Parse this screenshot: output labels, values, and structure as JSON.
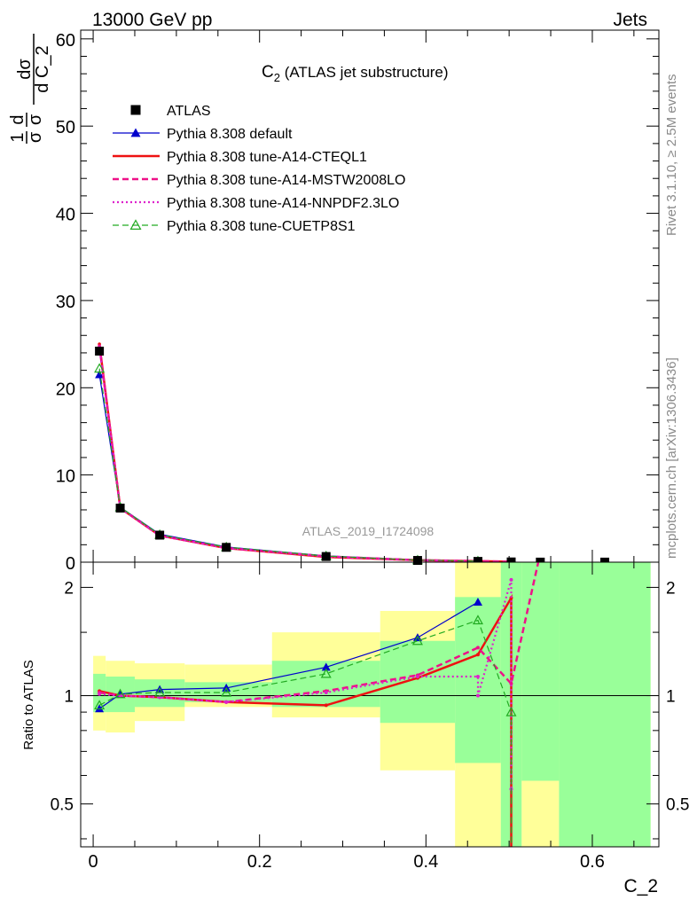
{
  "header": {
    "left": "13000 GeV pp",
    "right": "Jets"
  },
  "side_labels": {
    "rivet": "Rivet 3.1.10, ≥ 2.5M events",
    "mcplots": "mcplots.cern.ch [arXiv:1306.3436]"
  },
  "watermark": "ATLAS_2019_I1724098",
  "chart_data": [
    {
      "type": "line",
      "title": "C2 (ATLAS jet substructure)",
      "title_main": "C",
      "title_sub": "2",
      "title_rest": " (ATLAS jet substructure)",
      "ylabel": "1/σ dσ/dC_2",
      "xlabel": "C_2",
      "xlim": [
        -0.015,
        0.68
      ],
      "ylim": [
        0,
        61
      ],
      "xticks": [
        "0",
        "0.2",
        "0.4",
        "0.6"
      ],
      "yticks": [
        "0",
        "10",
        "20",
        "30",
        "40",
        "50",
        "60"
      ],
      "legend_position": "top-left",
      "data_x": [
        0.0075,
        0.0325,
        0.08,
        0.16,
        0.28,
        0.39,
        0.4625,
        0.5025,
        0.5375,
        0.615
      ],
      "data_y": [
        24.2,
        6.2,
        3.1,
        1.7,
        0.65,
        0.2,
        0.09,
        0.03,
        0.01,
        0.01
      ],
      "series": [
        {
          "name": "ATLAS",
          "color": "#000000",
          "style": "marker-square",
          "x": [
            0.0075,
            0.0325,
            0.08,
            0.16,
            0.28,
            0.39,
            0.4625,
            0.5025,
            0.5375,
            0.615
          ],
          "y": [
            24.2,
            6.2,
            3.1,
            1.7,
            0.65,
            0.2,
            0.09,
            0.03,
            0.01,
            0.01
          ]
        },
        {
          "name": "Pythia 8.308 default",
          "color": "#0000cc",
          "style": "solid-triangle",
          "x": [
            0.0075,
            0.0325,
            0.08,
            0.16,
            0.28,
            0.39,
            0.4625
          ],
          "y": [
            21.5,
            6.3,
            3.2,
            1.75,
            0.72,
            0.25,
            0.14
          ]
        },
        {
          "name": "Pythia 8.308 tune-A14-CTEQL1",
          "color": "#ee1111",
          "style": "solid",
          "x": [
            0.0075,
            0.0325,
            0.08,
            0.16,
            0.28,
            0.39,
            0.4625,
            0.5025
          ],
          "y": [
            25.0,
            6.2,
            3.05,
            1.62,
            0.6,
            0.22,
            0.12,
            0.05
          ]
        },
        {
          "name": "Pythia 8.308 tune-A14-MSTW2008LO",
          "color": "#ee1188",
          "style": "dashed",
          "x": [
            0.0075,
            0.0325,
            0.08,
            0.16,
            0.28,
            0.39,
            0.4625,
            0.5025
          ],
          "y": [
            24.8,
            6.2,
            3.05,
            1.63,
            0.66,
            0.23,
            0.12,
            0.06
          ]
        },
        {
          "name": "Pythia 8.308 tune-A14-NNPDF2.3LO",
          "color": "#dd22cc",
          "style": "dotted",
          "x": [
            0.0075,
            0.0325,
            0.08,
            0.16,
            0.28,
            0.39,
            0.4625
          ],
          "y": [
            24.6,
            6.2,
            3.05,
            1.63,
            0.66,
            0.23,
            0.1
          ]
        },
        {
          "name": "Pythia 8.308 tune-CUETP8S1",
          "color": "#22aa22",
          "style": "dashed-open-triangle",
          "x": [
            0.0075,
            0.0325,
            0.08,
            0.16,
            0.28,
            0.39,
            0.4625
          ],
          "y": [
            22.2,
            6.3,
            3.15,
            1.73,
            0.7,
            0.23,
            0.12
          ]
        }
      ]
    },
    {
      "type": "line",
      "ylabel": "Ratio to ATLAS",
      "xlabel": "C_2",
      "ylog": true,
      "xlim": [
        -0.015,
        0.68
      ],
      "ylim": [
        0.38,
        2.35
      ],
      "xticks": [
        "0",
        "0.2",
        "0.4",
        "0.6"
      ],
      "yticks": [
        "0.5",
        "1",
        "2"
      ],
      "bands": {
        "x_edges": [
          0.0,
          0.015,
          0.05,
          0.11,
          0.215,
          0.345,
          0.435,
          0.49,
          0.515,
          0.56,
          0.67
        ],
        "yellow_low": [
          0.8,
          0.79,
          0.85,
          0.93,
          0.87,
          0.62,
          0.38,
          0.38,
          0.38,
          0.38
        ],
        "yellow_high": [
          1.29,
          1.25,
          1.23,
          1.22,
          1.5,
          1.72,
          2.35,
          2.35,
          2.35,
          2.35
        ],
        "green_low": [
          0.9,
          0.9,
          0.93,
          0.96,
          0.93,
          0.84,
          0.65,
          0.38,
          0.58,
          0.38
        ],
        "green_high": [
          1.15,
          1.13,
          1.11,
          1.09,
          1.25,
          1.42,
          1.88,
          2.35,
          2.35,
          2.35
        ]
      },
      "series": [
        {
          "name": "Pythia 8.308 default",
          "color": "#0000cc",
          "x": [
            0.0075,
            0.0325,
            0.08,
            0.16,
            0.28,
            0.39,
            0.4625
          ],
          "y": [
            0.92,
            1.01,
            1.04,
            1.05,
            1.2,
            1.45,
            1.82
          ]
        },
        {
          "name": "Pythia 8.308 tune-A14-CTEQL1",
          "color": "#ee1111",
          "x": [
            0.0075,
            0.0325,
            0.08,
            0.16,
            0.28,
            0.39,
            0.4625,
            0.5025,
            0.5025
          ],
          "y": [
            1.03,
            1.0,
            0.99,
            0.96,
            0.94,
            1.12,
            1.3,
            1.87,
            0.38
          ]
        },
        {
          "name": "Pythia 8.308 tune-A14-MSTW2008LO",
          "color": "#ee1188",
          "x": [
            0.0075,
            0.0325,
            0.08,
            0.16,
            0.28,
            0.39,
            0.4625,
            0.5025,
            0.535
          ],
          "y": [
            1.02,
            1.0,
            0.99,
            0.96,
            1.03,
            1.14,
            1.36,
            1.08,
            2.35
          ]
        },
        {
          "name": "Pythia 8.308 tune-A14-NNPDF2.3LO",
          "color": "#dd22cc",
          "x": [
            0.0075,
            0.0325,
            0.08,
            0.16,
            0.28,
            0.39,
            0.4625,
            0.4625,
            0.5025,
            0.5025
          ],
          "y": [
            1.01,
            1.0,
            0.99,
            0.96,
            1.02,
            1.13,
            1.13,
            1.0,
            2.1,
            0.55
          ]
        },
        {
          "name": "Pythia 8.308 tune-CUETP8S1",
          "color": "#22aa22",
          "x": [
            0.0075,
            0.0325,
            0.08,
            0.16,
            0.28,
            0.39,
            0.4625,
            0.5025,
            0.5025
          ],
          "y": [
            0.94,
            1.01,
            1.02,
            1.02,
            1.15,
            1.42,
            1.62,
            0.9,
            0.38
          ]
        }
      ]
    }
  ]
}
